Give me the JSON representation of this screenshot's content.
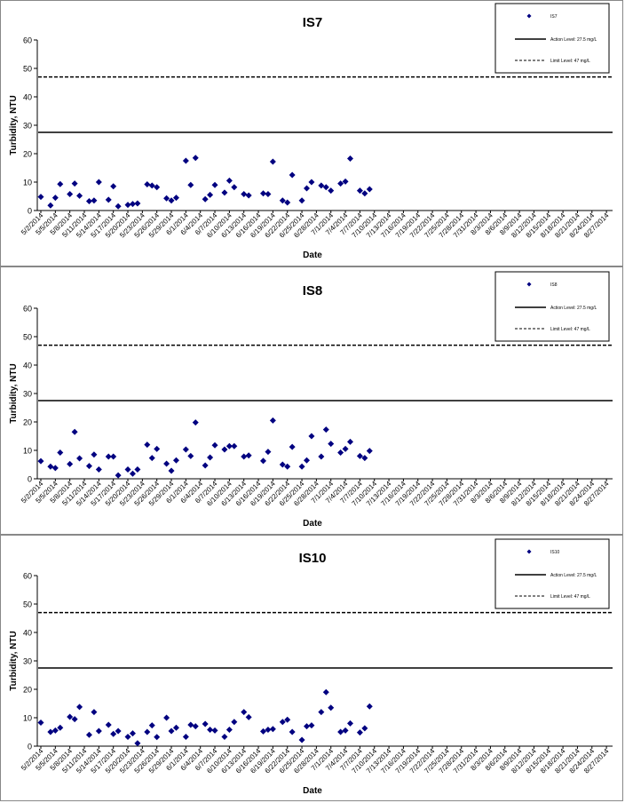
{
  "colors": {
    "marker": "#000080",
    "axis": "#000000",
    "border": "#888888"
  },
  "chart_data": [
    {
      "type": "scatter",
      "title": "IS7",
      "xlabel": "Date",
      "ylabel": "Turbidity, NTU",
      "ylim": [
        0,
        60
      ],
      "yticks": [
        0,
        10,
        20,
        30,
        40,
        50,
        60
      ],
      "xtick_labels": [
        "5/2/2014",
        "5/5/2014",
        "5/8/2014",
        "5/11/2014",
        "5/14/2014",
        "5/17/2014",
        "5/20/2014",
        "5/23/2014",
        "5/26/2014",
        "5/29/2014",
        "6/1/2014",
        "6/4/2014",
        "6/7/2014",
        "6/10/2014",
        "6/13/2014",
        "6/16/2014",
        "6/19/2014",
        "6/22/2014",
        "6/25/2014",
        "6/28/2014",
        "7/1/2014",
        "7/4/2014",
        "7/7/2014",
        "7/10/2014",
        "7/13/2014",
        "7/16/2014",
        "7/19/2014",
        "7/22/2014",
        "7/25/2014",
        "7/28/2014",
        "7/31/2014",
        "8/3/2014",
        "8/6/2014",
        "8/9/2014",
        "8/12/2014",
        "8/15/2014",
        "8/18/2014",
        "8/21/2014",
        "8/24/2014",
        "8/27/2014"
      ],
      "legend": {
        "position": "top-right",
        "series_label": "IS7",
        "action_label": "Action Level: 27.5 mg/L",
        "limit_label": "Limit Level: 47 mg/L"
      },
      "reference_lines": [
        {
          "name": "Action Level: 27.5 mg/L",
          "value": 27.5,
          "style": "solid"
        },
        {
          "name": "Limit Level: 47 mg/L",
          "value": 47,
          "style": "dashed"
        }
      ],
      "series": [
        {
          "name": "IS7",
          "points": [
            [
              "5/2/2014",
              4.8
            ],
            [
              "5/4/2014",
              1.8
            ],
            [
              "5/5/2014",
              4.5
            ],
            [
              "5/6/2014",
              9.3
            ],
            [
              "5/8/2014",
              5.8
            ],
            [
              "5/9/2014",
              9.5
            ],
            [
              "5/10/2014",
              5.2
            ],
            [
              "5/12/2014",
              3.3
            ],
            [
              "5/13/2014",
              3.5
            ],
            [
              "5/14/2014",
              10.0
            ],
            [
              "5/16/2014",
              3.8
            ],
            [
              "5/17/2014",
              8.5
            ],
            [
              "5/18/2014",
              1.5
            ],
            [
              "5/20/2014",
              2.0
            ],
            [
              "5/21/2014",
              2.3
            ],
            [
              "5/22/2014",
              2.5
            ],
            [
              "5/24/2014",
              9.2
            ],
            [
              "5/25/2014",
              8.8
            ],
            [
              "5/26/2014",
              8.2
            ],
            [
              "5/28/2014",
              4.3
            ],
            [
              "5/29/2014",
              3.5
            ],
            [
              "5/30/2014",
              4.5
            ],
            [
              "6/1/2014",
              17.5
            ],
            [
              "6/2/2014",
              9.0
            ],
            [
              "6/3/2014",
              18.5
            ],
            [
              "6/5/2014",
              4.0
            ],
            [
              "6/6/2014",
              5.5
            ],
            [
              "6/7/2014",
              9.0
            ],
            [
              "6/9/2014",
              6.3
            ],
            [
              "6/10/2014",
              10.5
            ],
            [
              "6/11/2014",
              8.2
            ],
            [
              "6/13/2014",
              5.8
            ],
            [
              "6/14/2014",
              5.3
            ],
            [
              "6/17/2014",
              6.0
            ],
            [
              "6/18/2014",
              5.8
            ],
            [
              "6/19/2014",
              17.2
            ],
            [
              "6/21/2014",
              3.5
            ],
            [
              "6/22/2014",
              2.8
            ],
            [
              "6/23/2014",
              12.5
            ],
            [
              "6/25/2014",
              3.5
            ],
            [
              "6/26/2014",
              7.8
            ],
            [
              "6/27/2014",
              10.0
            ],
            [
              "6/29/2014",
              8.8
            ],
            [
              "6/30/2014",
              8.2
            ],
            [
              "7/1/2014",
              7.0
            ],
            [
              "7/3/2014",
              9.5
            ],
            [
              "7/4/2014",
              10.2
            ],
            [
              "7/5/2014",
              18.3
            ],
            [
              "7/7/2014",
              7.0
            ],
            [
              "7/8/2014",
              6.0
            ],
            [
              "7/9/2014",
              7.5
            ]
          ]
        }
      ]
    },
    {
      "type": "scatter",
      "title": "IS8",
      "xlabel": "Date",
      "ylabel": "Turbidity, NTU",
      "ylim": [
        0,
        60
      ],
      "yticks": [
        0,
        10,
        20,
        30,
        40,
        50,
        60
      ],
      "xtick_labels": [
        "5/2/2014",
        "5/5/2014",
        "5/8/2014",
        "5/11/2014",
        "5/14/2014",
        "5/17/2014",
        "5/20/2014",
        "5/23/2014",
        "5/26/2014",
        "5/29/2014",
        "6/1/2014",
        "6/4/2014",
        "6/7/2014",
        "6/10/2014",
        "6/13/2014",
        "6/16/2014",
        "6/19/2014",
        "6/22/2014",
        "6/25/2014",
        "6/28/2014",
        "7/1/2014",
        "7/4/2014",
        "7/7/2014",
        "7/10/2014",
        "7/13/2014",
        "7/16/2014",
        "7/19/2014",
        "7/22/2014",
        "7/25/2014",
        "7/28/2014",
        "7/31/2014",
        "8/3/2014",
        "8/6/2014",
        "8/9/2014",
        "8/12/2014",
        "8/15/2014",
        "8/18/2014",
        "8/21/2014",
        "8/24/2014",
        "8/27/2014"
      ],
      "legend": {
        "position": "top-right",
        "series_label": "IS8",
        "action_label": "Action Level: 27.5 mg/L",
        "limit_label": "Limit Level: 47 mg/L"
      },
      "reference_lines": [
        {
          "name": "Action Level: 27.5 mg/L",
          "value": 27.5,
          "style": "solid"
        },
        {
          "name": "Limit Level: 47 mg/L",
          "value": 47,
          "style": "dashed"
        }
      ],
      "series": [
        {
          "name": "IS8",
          "points": [
            [
              "5/2/2014",
              6.2
            ],
            [
              "5/4/2014",
              4.3
            ],
            [
              "5/5/2014",
              3.8
            ],
            [
              "5/6/2014",
              9.2
            ],
            [
              "5/8/2014",
              5.2
            ],
            [
              "5/9/2014",
              16.5
            ],
            [
              "5/10/2014",
              7.2
            ],
            [
              "5/12/2014",
              4.5
            ],
            [
              "5/13/2014",
              8.5
            ],
            [
              "5/14/2014",
              3.3
            ],
            [
              "5/16/2014",
              7.8
            ],
            [
              "5/17/2014",
              7.8
            ],
            [
              "5/18/2014",
              1.2
            ],
            [
              "5/20/2014",
              3.3
            ],
            [
              "5/21/2014",
              1.8
            ],
            [
              "5/22/2014",
              3.3
            ],
            [
              "5/24/2014",
              12.0
            ],
            [
              "5/25/2014",
              7.3
            ],
            [
              "5/26/2014",
              10.5
            ],
            [
              "5/28/2014",
              5.3
            ],
            [
              "5/29/2014",
              2.8
            ],
            [
              "5/30/2014",
              6.5
            ],
            [
              "6/1/2014",
              10.3
            ],
            [
              "6/2/2014",
              8.0
            ],
            [
              "6/3/2014",
              19.8
            ],
            [
              "6/5/2014",
              4.7
            ],
            [
              "6/6/2014",
              7.5
            ],
            [
              "6/7/2014",
              11.8
            ],
            [
              "6/9/2014",
              10.3
            ],
            [
              "6/10/2014",
              11.5
            ],
            [
              "6/11/2014",
              11.5
            ],
            [
              "6/13/2014",
              7.8
            ],
            [
              "6/14/2014",
              8.2
            ],
            [
              "6/17/2014",
              6.3
            ],
            [
              "6/18/2014",
              9.5
            ],
            [
              "6/19/2014",
              20.5
            ],
            [
              "6/21/2014",
              5.0
            ],
            [
              "6/22/2014",
              4.3
            ],
            [
              "6/23/2014",
              11.2
            ],
            [
              "6/25/2014",
              4.3
            ],
            [
              "6/26/2014",
              6.5
            ],
            [
              "6/27/2014",
              15.0
            ],
            [
              "6/29/2014",
              7.8
            ],
            [
              "6/30/2014",
              17.3
            ],
            [
              "7/1/2014",
              12.3
            ],
            [
              "7/3/2014",
              9.2
            ],
            [
              "7/4/2014",
              10.5
            ],
            [
              "7/5/2014",
              13.0
            ],
            [
              "7/7/2014",
              8.0
            ],
            [
              "7/8/2014",
              7.3
            ],
            [
              "7/9/2014",
              9.8
            ]
          ]
        }
      ]
    },
    {
      "type": "scatter",
      "title": "IS10",
      "xlabel": "Date",
      "ylabel": "Turbidity, NTU",
      "ylim": [
        0,
        60
      ],
      "yticks": [
        0,
        10,
        20,
        30,
        40,
        50,
        60
      ],
      "xtick_labels": [
        "5/2/2014",
        "5/5/2014",
        "5/8/2014",
        "5/11/2014",
        "5/14/2014",
        "5/17/2014",
        "5/20/2014",
        "5/23/2014",
        "5/26/2014",
        "5/29/2014",
        "6/1/2014",
        "6/4/2014",
        "6/7/2014",
        "6/10/2014",
        "6/13/2014",
        "6/16/2014",
        "6/19/2014",
        "6/22/2014",
        "6/25/2014",
        "6/28/2014",
        "7/1/2014",
        "7/4/2014",
        "7/7/2014",
        "7/10/2014",
        "7/13/2014",
        "7/16/2014",
        "7/19/2014",
        "7/22/2014",
        "7/25/2014",
        "7/28/2014",
        "7/31/2014",
        "8/3/2014",
        "8/6/2014",
        "8/9/2014",
        "8/12/2014",
        "8/15/2014",
        "8/18/2014",
        "8/21/2014",
        "8/24/2014",
        "8/27/2014"
      ],
      "legend": {
        "position": "top-right",
        "series_label": "IS10",
        "action_label": "Action Level: 27.5 mg/L",
        "limit_label": "Limit Level: 47 mg/L"
      },
      "reference_lines": [
        {
          "name": "Action Level: 27.5 mg/L",
          "value": 27.5,
          "style": "solid"
        },
        {
          "name": "Limit Level: 47 mg/L",
          "value": 47,
          "style": "dashed"
        }
      ],
      "series": [
        {
          "name": "IS10",
          "points": [
            [
              "5/2/2014",
              8.3
            ],
            [
              "5/4/2014",
              5.0
            ],
            [
              "5/5/2014",
              5.5
            ],
            [
              "5/6/2014",
              6.5
            ],
            [
              "5/8/2014",
              10.3
            ],
            [
              "5/9/2014",
              9.5
            ],
            [
              "5/10/2014",
              13.8
            ],
            [
              "5/12/2014",
              4.0
            ],
            [
              "5/13/2014",
              12.0
            ],
            [
              "5/14/2014",
              5.3
            ],
            [
              "5/16/2014",
              7.5
            ],
            [
              "5/17/2014",
              4.3
            ],
            [
              "5/18/2014",
              5.3
            ],
            [
              "5/20/2014",
              3.3
            ],
            [
              "5/21/2014",
              4.5
            ],
            [
              "5/22/2014",
              1.0
            ],
            [
              "5/24/2014",
              5.0
            ],
            [
              "5/25/2014",
              7.3
            ],
            [
              "5/26/2014",
              3.2
            ],
            [
              "5/28/2014",
              10.0
            ],
            [
              "5/29/2014",
              5.3
            ],
            [
              "5/30/2014",
              6.5
            ],
            [
              "6/1/2014",
              3.3
            ],
            [
              "6/2/2014",
              7.5
            ],
            [
              "6/3/2014",
              7.0
            ],
            [
              "6/5/2014",
              7.8
            ],
            [
              "6/6/2014",
              5.8
            ],
            [
              "6/7/2014",
              5.5
            ],
            [
              "6/9/2014",
              3.3
            ],
            [
              "6/10/2014",
              5.8
            ],
            [
              "6/11/2014",
              8.5
            ],
            [
              "6/13/2014",
              12.0
            ],
            [
              "6/14/2014",
              10.2
            ],
            [
              "6/17/2014",
              5.2
            ],
            [
              "6/18/2014",
              5.8
            ],
            [
              "6/19/2014",
              6.0
            ],
            [
              "6/21/2014",
              8.5
            ],
            [
              "6/22/2014",
              9.3
            ],
            [
              "6/23/2014",
              5.0
            ],
            [
              "6/25/2014",
              2.2
            ],
            [
              "6/26/2014",
              7.0
            ],
            [
              "6/27/2014",
              7.3
            ],
            [
              "6/29/2014",
              12.0
            ],
            [
              "6/30/2014",
              19.0
            ],
            [
              "7/1/2014",
              13.5
            ],
            [
              "7/3/2014",
              5.0
            ],
            [
              "7/4/2014",
              5.5
            ],
            [
              "7/5/2014",
              8.0
            ],
            [
              "7/7/2014",
              4.8
            ],
            [
              "7/8/2014",
              6.3
            ],
            [
              "7/9/2014",
              14.0
            ]
          ]
        }
      ]
    }
  ]
}
